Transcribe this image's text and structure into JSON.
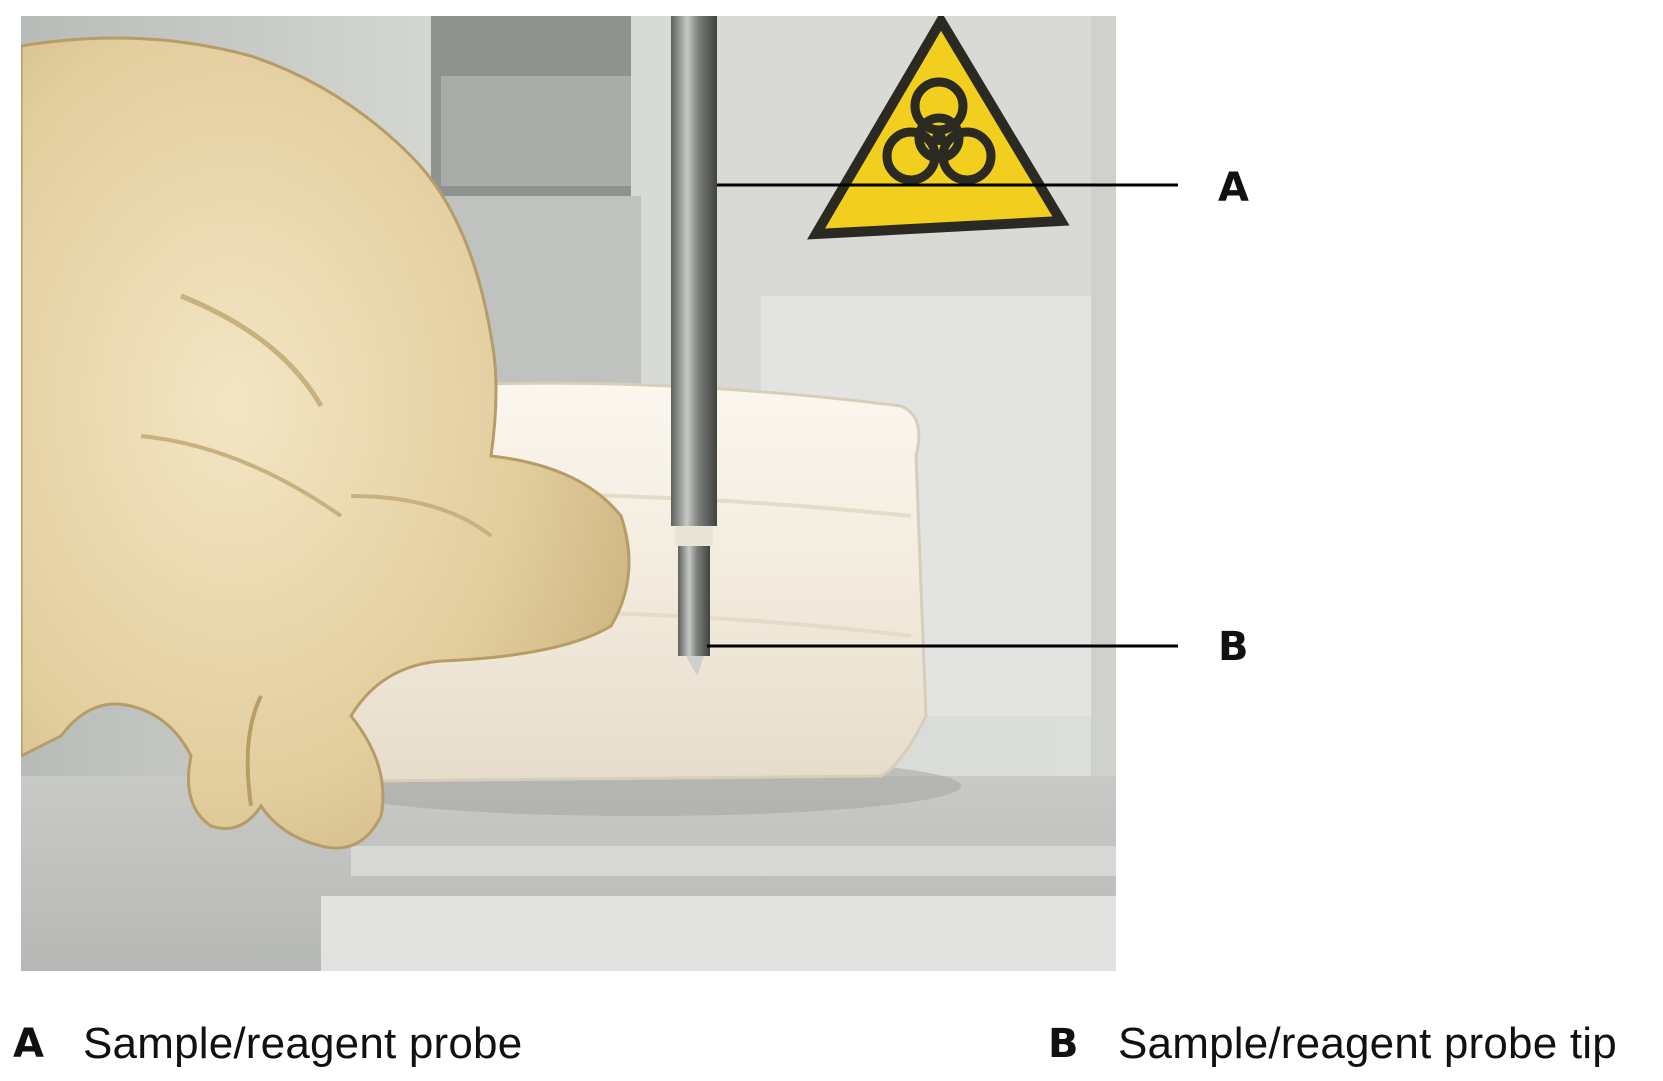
{
  "callouts": [
    {
      "letter": "A",
      "label": "Sample/reagent probe"
    },
    {
      "letter": "B",
      "label": "Sample/reagent probe tip"
    }
  ],
  "colors": {
    "glove": "#e7d4a7",
    "cloth": "#f4ebdf",
    "machine_panel": "#d2d3d0",
    "warning_yellow": "#f2cf1f",
    "probe_metal": "#8e908e"
  },
  "icons": [
    "biohazard-warning-icon"
  ]
}
